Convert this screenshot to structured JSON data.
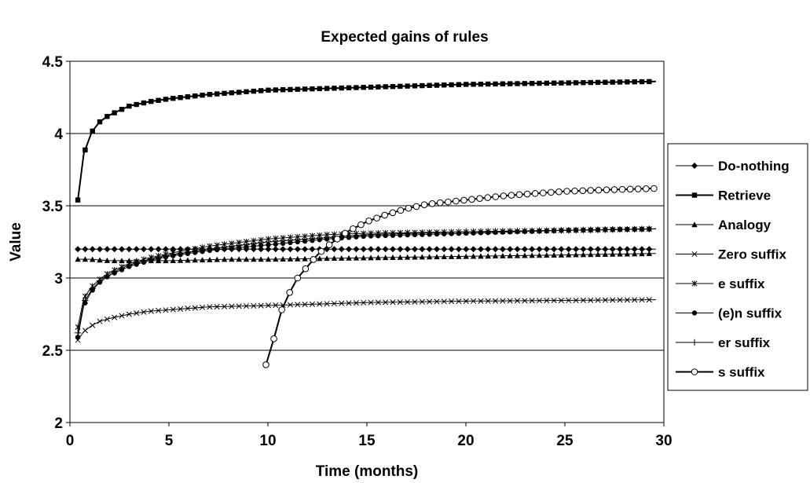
{
  "chart_data": {
    "type": "line",
    "title": "Expected gains of rules",
    "xlabel": "Time (months)",
    "ylabel": "Value",
    "xlim": [
      0,
      30
    ],
    "ylim": [
      2,
      4.5
    ],
    "xticks": [
      "0",
      "5",
      "10",
      "15",
      "20",
      "25",
      "30"
    ],
    "yticks": [
      "2",
      "2.5",
      "3",
      "3.5",
      "4",
      "4.5"
    ],
    "grid": "horizontal",
    "legend_position": "right",
    "series": [
      {
        "name": "Do-nothing",
        "marker": "diamond",
        "points": [
          [
            0.4,
            3.2
          ],
          [
            2,
            3.2
          ],
          [
            5,
            3.2
          ],
          [
            10,
            3.2
          ],
          [
            15,
            3.2
          ],
          [
            20,
            3.2
          ],
          [
            25,
            3.2
          ],
          [
            29.6,
            3.2
          ]
        ]
      },
      {
        "name": "Retrieve",
        "marker": "square",
        "points": [
          [
            0.4,
            3.54
          ],
          [
            0.7,
            3.86
          ],
          [
            1.1,
            4.01
          ],
          [
            1.5,
            4.08
          ],
          [
            1.9,
            4.12
          ],
          [
            2.5,
            4.16
          ],
          [
            3,
            4.19
          ],
          [
            4,
            4.22
          ],
          [
            5,
            4.24
          ],
          [
            7,
            4.27
          ],
          [
            10,
            4.3
          ],
          [
            15,
            4.32
          ],
          [
            20,
            4.34
          ],
          [
            25,
            4.35
          ],
          [
            29.6,
            4.36
          ]
        ]
      },
      {
        "name": "Analogy",
        "marker": "triangle",
        "points": [
          [
            0.4,
            3.13
          ],
          [
            1,
            3.13
          ],
          [
            2,
            3.12
          ],
          [
            3,
            3.12
          ],
          [
            5,
            3.12
          ],
          [
            8,
            3.13
          ],
          [
            10,
            3.13
          ],
          [
            15,
            3.14
          ],
          [
            20,
            3.15
          ],
          [
            25,
            3.16
          ],
          [
            29.6,
            3.17
          ]
        ]
      },
      {
        "name": "Zero suffix",
        "marker": "x",
        "points": [
          [
            0.4,
            2.57
          ],
          [
            0.7,
            2.63
          ],
          [
            1.1,
            2.67
          ],
          [
            1.5,
            2.7
          ],
          [
            2,
            2.72
          ],
          [
            3,
            2.75
          ],
          [
            4,
            2.77
          ],
          [
            5,
            2.78
          ],
          [
            7,
            2.8
          ],
          [
            10,
            2.81
          ],
          [
            15,
            2.83
          ],
          [
            20,
            2.84
          ],
          [
            25,
            2.845
          ],
          [
            29.6,
            2.85
          ]
        ]
      },
      {
        "name": "e suffix",
        "marker": "star",
        "points": [
          [
            0.4,
            2.66
          ],
          [
            0.7,
            2.86
          ],
          [
            1.1,
            2.94
          ],
          [
            1.5,
            2.99
          ],
          [
            2,
            3.04
          ],
          [
            3,
            3.1
          ],
          [
            4,
            3.14
          ],
          [
            5,
            3.17
          ],
          [
            7,
            3.22
          ],
          [
            10,
            3.27
          ],
          [
            13,
            3.3
          ],
          [
            15,
            3.31
          ],
          [
            20,
            3.32
          ],
          [
            25,
            3.33
          ],
          [
            29.6,
            3.34
          ]
        ]
      },
      {
        "name": "(e)n suffix",
        "marker": "dot",
        "points": [
          [
            0.4,
            2.59
          ],
          [
            0.7,
            2.81
          ],
          [
            1.1,
            2.91
          ],
          [
            1.5,
            2.97
          ],
          [
            2,
            3.02
          ],
          [
            3,
            3.08
          ],
          [
            4,
            3.12
          ],
          [
            5,
            3.15
          ],
          [
            7,
            3.19
          ],
          [
            10,
            3.23
          ],
          [
            13,
            3.27
          ],
          [
            15,
            3.29
          ],
          [
            20,
            3.31
          ],
          [
            25,
            3.33
          ],
          [
            29.6,
            3.34
          ]
        ]
      },
      {
        "name": "er suffix",
        "marker": "plus",
        "points": [
          [
            0.4,
            2.62
          ],
          [
            0.7,
            2.83
          ],
          [
            1.1,
            2.92
          ],
          [
            1.5,
            2.98
          ],
          [
            2,
            3.03
          ],
          [
            3,
            3.09
          ],
          [
            4,
            3.13
          ],
          [
            5,
            3.16
          ],
          [
            7,
            3.2
          ],
          [
            10,
            3.25
          ],
          [
            13,
            3.28
          ],
          [
            15,
            3.3
          ],
          [
            20,
            3.32
          ],
          [
            25,
            3.33
          ],
          [
            29.6,
            3.34
          ]
        ]
      },
      {
        "name": "s suffix",
        "marker": "circle",
        "points": [
          [
            9.9,
            2.4
          ],
          [
            10.3,
            2.58
          ],
          [
            10.7,
            2.78
          ],
          [
            11.1,
            2.9
          ],
          [
            11.5,
            3.0
          ],
          [
            12,
            3.08
          ],
          [
            12.5,
            3.16
          ],
          [
            13,
            3.22
          ],
          [
            14,
            3.32
          ],
          [
            15,
            3.39
          ],
          [
            16,
            3.44
          ],
          [
            17,
            3.48
          ],
          [
            18,
            3.51
          ],
          [
            20,
            3.54
          ],
          [
            22,
            3.57
          ],
          [
            25,
            3.6
          ],
          [
            27,
            3.61
          ],
          [
            29.6,
            3.62
          ]
        ]
      }
    ]
  }
}
